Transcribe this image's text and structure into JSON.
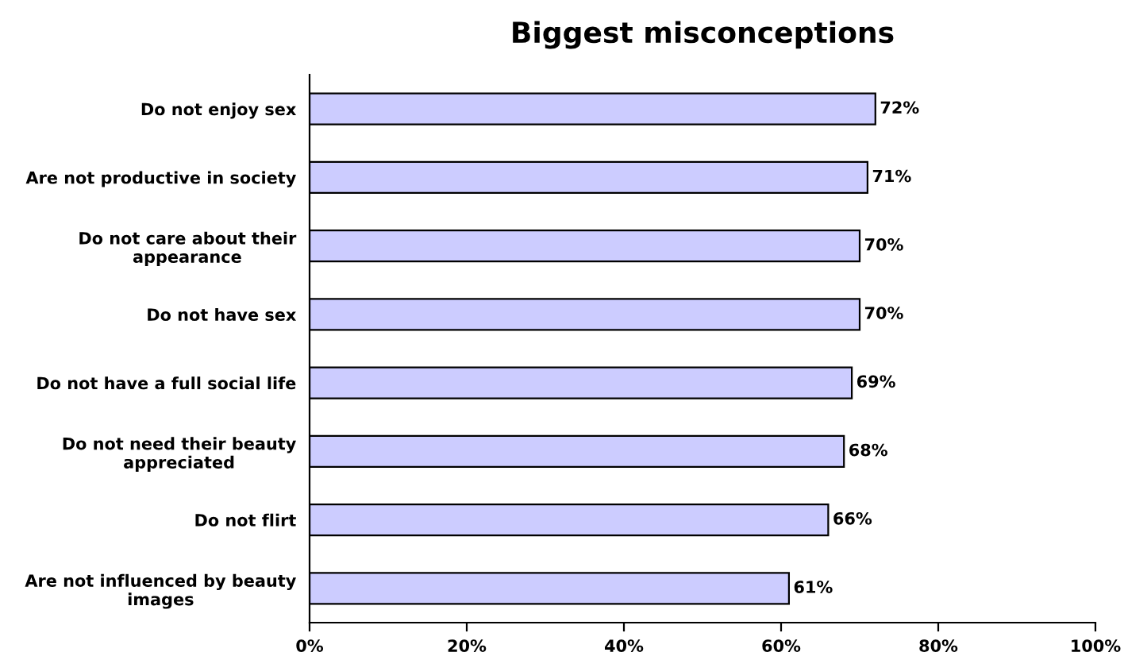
{
  "chart_data": {
    "type": "bar",
    "orientation": "horizontal",
    "title": "Biggest misconceptions",
    "categories": [
      "Do not enjoy sex",
      "Are not productive in society",
      "Do not care about their\nappearance",
      "Do not have sex",
      "Do not have a full social life",
      "Do not need their beauty\nappreciated",
      "Do not flirt",
      "Are not influenced by beauty\nimages"
    ],
    "values": [
      72,
      71,
      70,
      70,
      69,
      68,
      66,
      61
    ],
    "value_labels": [
      "72%",
      "71%",
      "70%",
      "70%",
      "69%",
      "68%",
      "66%",
      "61%"
    ],
    "color": "#ccccff",
    "xlim": [
      0,
      100
    ],
    "xticks": [
      {
        "value": 0,
        "label": "0%"
      },
      {
        "value": 20,
        "label": "20%"
      },
      {
        "value": 40,
        "label": "40%"
      },
      {
        "value": 60,
        "label": "60%"
      },
      {
        "value": 80,
        "label": "80%"
      },
      {
        "value": 100,
        "label": "100%"
      }
    ],
    "grid": false
  }
}
